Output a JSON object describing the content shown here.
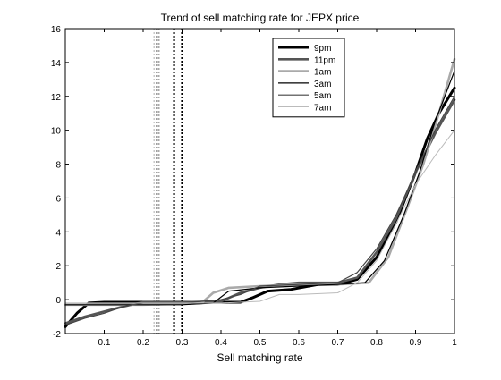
{
  "chart_data": {
    "type": "line",
    "title": "Trend of sell matching rate for JEPX price",
    "xlabel": "Sell matching rate",
    "ylabel": "",
    "xlim": [
      0,
      1
    ],
    "ylim": [
      -2,
      16
    ],
    "xticks": [
      0.1,
      0.2,
      0.3,
      0.4,
      0.5,
      0.6,
      0.7,
      0.8,
      0.9,
      1
    ],
    "xtick_labels": [
      "0.1",
      "0.2",
      "0.3",
      "0.4",
      "0.5",
      "0.6",
      "0.7",
      "0.8",
      "0.9",
      "1"
    ],
    "yticks": [
      -2,
      0,
      2,
      4,
      6,
      8,
      10,
      12,
      14,
      16
    ],
    "ytick_labels": [
      "-2",
      "0",
      "2",
      "4",
      "6",
      "8",
      "10",
      "12",
      "14",
      "16"
    ],
    "grid": false,
    "legend_position": "top-center",
    "series": [
      {
        "name": "9pm",
        "color": "#000000",
        "points": [
          [
            0.0,
            -1.6
          ],
          [
            0.03,
            -0.8
          ],
          [
            0.06,
            -0.2
          ],
          [
            0.1,
            -0.15
          ],
          [
            0.2,
            -0.15
          ],
          [
            0.3,
            -0.15
          ],
          [
            0.4,
            -0.15
          ],
          [
            0.45,
            -0.15
          ],
          [
            0.48,
            0.1
          ],
          [
            0.52,
            0.5
          ],
          [
            0.58,
            0.6
          ],
          [
            0.65,
            0.9
          ],
          [
            0.7,
            0.9
          ],
          [
            0.75,
            1.2
          ],
          [
            0.8,
            2.5
          ],
          [
            0.85,
            4.6
          ],
          [
            0.9,
            7.5
          ],
          [
            0.93,
            9.5
          ],
          [
            0.96,
            11.0
          ],
          [
            1.0,
            12.5
          ]
        ],
        "vline": 0.3
      },
      {
        "name": "11pm",
        "color": "#555555",
        "points": [
          [
            0.0,
            -1.4
          ],
          [
            0.05,
            -1.0
          ],
          [
            0.1,
            -0.7
          ],
          [
            0.15,
            -0.4
          ],
          [
            0.2,
            -0.15
          ],
          [
            0.3,
            -0.15
          ],
          [
            0.4,
            -0.1
          ],
          [
            0.45,
            0.4
          ],
          [
            0.5,
            0.7
          ],
          [
            0.55,
            0.9
          ],
          [
            0.6,
            1.0
          ],
          [
            0.7,
            1.0
          ],
          [
            0.75,
            1.3
          ],
          [
            0.8,
            2.8
          ],
          [
            0.85,
            4.8
          ],
          [
            0.9,
            7.5
          ],
          [
            0.95,
            9.8
          ],
          [
            1.0,
            11.8
          ]
        ],
        "vline": 0.28
      },
      {
        "name": "1am",
        "color": "#aaaaaa",
        "points": [
          [
            0.0,
            -0.3
          ],
          [
            0.1,
            -0.3
          ],
          [
            0.2,
            -0.3
          ],
          [
            0.3,
            -0.25
          ],
          [
            0.35,
            -0.2
          ],
          [
            0.38,
            0.4
          ],
          [
            0.42,
            0.7
          ],
          [
            0.5,
            0.8
          ],
          [
            0.6,
            0.9
          ],
          [
            0.7,
            0.9
          ],
          [
            0.78,
            1.0
          ],
          [
            0.83,
            2.5
          ],
          [
            0.88,
            5.5
          ],
          [
            0.92,
            8.0
          ],
          [
            0.96,
            11.0
          ],
          [
            1.0,
            14.2
          ]
        ],
        "vline": 0.24
      },
      {
        "name": "3am",
        "color": "#000000",
        "points": [
          [
            0.0,
            -0.3
          ],
          [
            0.1,
            -0.3
          ],
          [
            0.2,
            -0.3
          ],
          [
            0.3,
            -0.3
          ],
          [
            0.38,
            -0.2
          ],
          [
            0.42,
            0.5
          ],
          [
            0.5,
            0.7
          ],
          [
            0.6,
            0.8
          ],
          [
            0.7,
            0.9
          ],
          [
            0.77,
            1.0
          ],
          [
            0.82,
            2.3
          ],
          [
            0.87,
            5.0
          ],
          [
            0.91,
            7.5
          ],
          [
            0.95,
            10.5
          ],
          [
            1.0,
            13.5
          ]
        ],
        "vline": 0.235
      },
      {
        "name": "5am",
        "color": "#444444",
        "points": [
          [
            0.0,
            -1.5
          ],
          [
            0.05,
            -1.1
          ],
          [
            0.1,
            -0.8
          ],
          [
            0.15,
            -0.4
          ],
          [
            0.2,
            -0.2
          ],
          [
            0.3,
            -0.2
          ],
          [
            0.4,
            0.0
          ],
          [
            0.45,
            0.3
          ],
          [
            0.5,
            0.8
          ],
          [
            0.6,
            0.9
          ],
          [
            0.7,
            1.0
          ],
          [
            0.75,
            1.6
          ],
          [
            0.8,
            3.0
          ],
          [
            0.85,
            5.0
          ],
          [
            0.9,
            7.5
          ],
          [
            0.95,
            10.0
          ],
          [
            1.0,
            12.0
          ]
        ],
        "vline": 0.278
      },
      {
        "name": "7am",
        "color": "#bbbbbb",
        "points": [
          [
            0.0,
            -0.2
          ],
          [
            0.1,
            -0.2
          ],
          [
            0.2,
            -0.2
          ],
          [
            0.3,
            -0.2
          ],
          [
            0.4,
            -0.2
          ],
          [
            0.5,
            -0.1
          ],
          [
            0.55,
            0.3
          ],
          [
            0.6,
            0.3
          ],
          [
            0.7,
            0.4
          ],
          [
            0.75,
            1.0
          ],
          [
            0.8,
            2.3
          ],
          [
            0.85,
            4.5
          ],
          [
            0.9,
            6.8
          ],
          [
            0.95,
            8.5
          ],
          [
            1.0,
            10.0
          ]
        ],
        "vline": 0.228
      }
    ]
  }
}
